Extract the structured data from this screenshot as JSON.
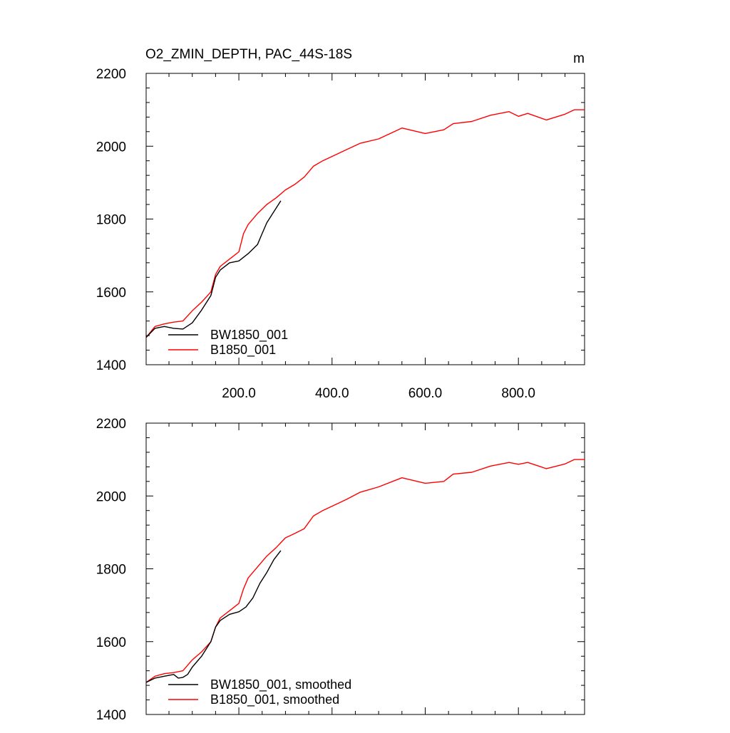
{
  "figure": {
    "title": "O2_ZMIN_DEPTH, PAC_44S-18S",
    "units": "m"
  },
  "colors": {
    "series_a": "#000000",
    "series_b": "#ff0000",
    "axis": "#000000"
  },
  "chart_data": [
    {
      "type": "line",
      "panel": "top",
      "title": "O2_ZMIN_DEPTH, PAC_44S-18S",
      "units": "m",
      "xlabel": "",
      "ylabel": "",
      "xlim": [
        1,
        942
      ],
      "ylim": [
        1400,
        2200
      ],
      "yticks": [
        1400,
        1600,
        1800,
        2000,
        2200
      ],
      "ytick_labels": [
        "1400",
        "1600",
        "1800",
        "2000",
        "2200"
      ],
      "xticks": [
        200,
        400,
        600,
        800
      ],
      "xtick_labels": [
        "200.0",
        "400.0",
        "600.0",
        "800.0"
      ],
      "legend": "bottom-left",
      "grid": false,
      "series": [
        {
          "name": "BW1850_001",
          "color": "#000000",
          "x": [
            1,
            20,
            40,
            60,
            80,
            100,
            120,
            140,
            150,
            160,
            180,
            200,
            220,
            240,
            250,
            260,
            280,
            290
          ],
          "y": [
            1475,
            1500,
            1505,
            1500,
            1498,
            1515,
            1550,
            1590,
            1640,
            1660,
            1680,
            1685,
            1705,
            1730,
            1760,
            1790,
            1830,
            1850
          ]
        },
        {
          "name": "B1850_001",
          "color": "#ff0000",
          "x": [
            1,
            20,
            40,
            60,
            80,
            100,
            120,
            140,
            150,
            160,
            180,
            200,
            210,
            220,
            240,
            260,
            280,
            300,
            320,
            340,
            360,
            380,
            400,
            430,
            460,
            500,
            550,
            600,
            640,
            660,
            700,
            740,
            780,
            800,
            820,
            860,
            900,
            920,
            942
          ],
          "y": [
            1475,
            1505,
            1512,
            1517,
            1520,
            1548,
            1572,
            1600,
            1648,
            1670,
            1690,
            1710,
            1760,
            1785,
            1815,
            1840,
            1858,
            1880,
            1895,
            1915,
            1945,
            1960,
            1972,
            1990,
            2008,
            2020,
            2050,
            2035,
            2045,
            2062,
            2068,
            2085,
            2095,
            2082,
            2090,
            2072,
            2088,
            2100,
            2100
          ]
        }
      ]
    },
    {
      "type": "line",
      "panel": "bottom",
      "xlim": [
        1,
        942
      ],
      "ylim": [
        1400,
        2200
      ],
      "yticks": [
        1400,
        1600,
        1800,
        2000,
        2200
      ],
      "ytick_labels": [
        "1400",
        "1600",
        "1800",
        "2000",
        "2200"
      ],
      "xticks": [
        200,
        400,
        600,
        800
      ],
      "xtick_labels": [],
      "legend": "bottom-left",
      "grid": false,
      "series": [
        {
          "name": "BW1850_001, smoothed",
          "color": "#000000",
          "x": [
            1,
            20,
            40,
            60,
            70,
            80,
            90,
            100,
            120,
            140,
            150,
            160,
            180,
            200,
            215,
            230,
            245,
            260,
            275,
            290
          ],
          "y": [
            1488,
            1500,
            1505,
            1510,
            1500,
            1502,
            1510,
            1530,
            1560,
            1600,
            1640,
            1658,
            1675,
            1682,
            1695,
            1720,
            1760,
            1790,
            1825,
            1850
          ]
        },
        {
          "name": "B1850_001, smoothed",
          "color": "#ff0000",
          "x": [
            1,
            20,
            40,
            60,
            80,
            100,
            120,
            140,
            150,
            160,
            180,
            200,
            210,
            220,
            240,
            260,
            280,
            300,
            320,
            340,
            360,
            380,
            400,
            430,
            460,
            500,
            550,
            600,
            640,
            660,
            700,
            740,
            780,
            800,
            820,
            860,
            900,
            920,
            942
          ],
          "y": [
            1488,
            1505,
            1512,
            1515,
            1520,
            1550,
            1572,
            1600,
            1640,
            1665,
            1685,
            1705,
            1745,
            1775,
            1805,
            1835,
            1858,
            1885,
            1897,
            1910,
            1945,
            1960,
            1972,
            1990,
            2010,
            2025,
            2050,
            2035,
            2040,
            2060,
            2065,
            2082,
            2092,
            2087,
            2092,
            2075,
            2088,
            2100,
            2100
          ]
        }
      ]
    }
  ]
}
